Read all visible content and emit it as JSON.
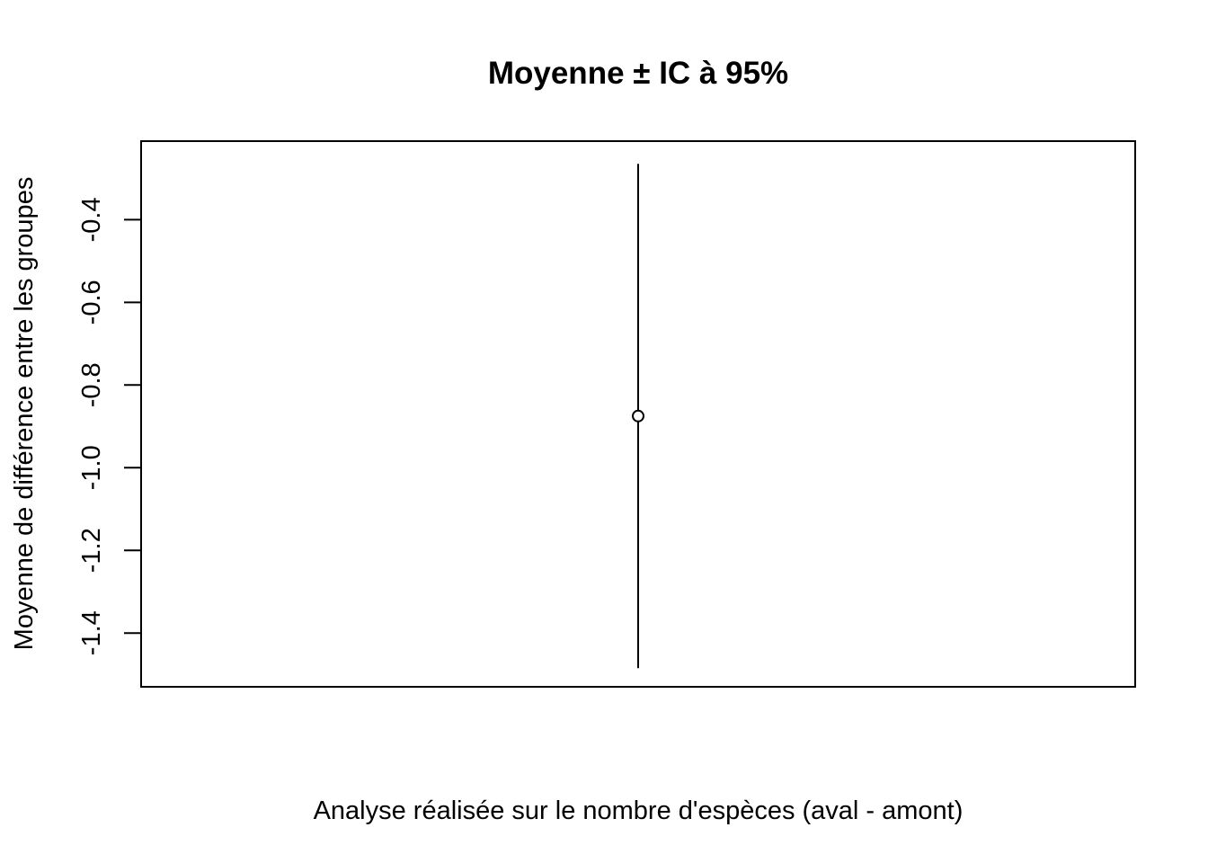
{
  "chart_data": {
    "type": "scatter",
    "title": "Moyenne ± IC à 95%",
    "xlabel": "Analyse réalisée sur le nombre d'espèces (aval - amont)",
    "ylabel": "Moyenne de différence entre les groupes",
    "xlim": [
      0.6,
      1.4
    ],
    "ylim": [
      -1.53,
      -0.21
    ],
    "yticks": [
      -1.4,
      -1.2,
      -1.0,
      -0.8,
      -0.6,
      -0.4
    ],
    "ytick_labels": [
      "-1.4",
      "-1.2",
      "-1.0",
      "-0.8",
      "-0.6",
      "-0.4"
    ],
    "x_axis_ticks_shown": false,
    "grid": false,
    "legend": "none",
    "points": [
      {
        "x": 1,
        "y": -0.875,
        "ci_low": -1.485,
        "ci_high": -0.265
      }
    ],
    "colors": {
      "point": "#000000",
      "errorbar": "#000000",
      "frame": "#000000"
    },
    "marker": "open-circle"
  }
}
